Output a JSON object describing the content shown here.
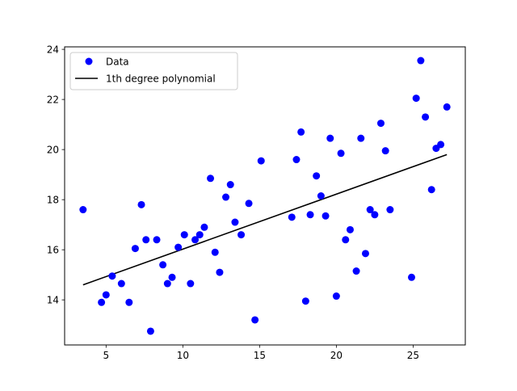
{
  "chart_data": {
    "type": "scatter",
    "title": "",
    "xlabel": "",
    "ylabel": "",
    "xlim": [
      2.3,
      28.4
    ],
    "ylim": [
      12.2,
      24.1
    ],
    "xticks": [
      5,
      10,
      15,
      20,
      25
    ],
    "yticks": [
      14,
      16,
      18,
      20,
      22,
      24
    ],
    "grid": false,
    "legend_position": "upper-left",
    "series": [
      {
        "name": "Data",
        "kind": "points",
        "color": "#0000ff",
        "x": [
          3.5,
          4.7,
          5.0,
          5.4,
          6.0,
          6.5,
          6.9,
          7.3,
          7.6,
          7.9,
          8.3,
          8.7,
          9.0,
          9.3,
          9.7,
          10.1,
          10.5,
          10.8,
          11.1,
          11.4,
          11.8,
          12.1,
          12.4,
          12.8,
          13.1,
          13.4,
          13.8,
          14.3,
          14.7,
          15.1,
          17.1,
          17.4,
          17.7,
          18.0,
          18.3,
          18.7,
          19.0,
          19.3,
          19.6,
          20.0,
          20.3,
          20.6,
          20.9,
          21.3,
          21.6,
          21.9,
          22.2,
          22.5,
          22.9,
          23.2,
          23.5,
          24.9,
          25.2,
          25.5,
          25.8,
          26.2,
          26.5,
          26.8,
          27.2
        ],
        "y": [
          17.6,
          13.9,
          14.2,
          14.95,
          14.65,
          13.9,
          16.05,
          17.8,
          16.4,
          12.75,
          16.4,
          15.4,
          14.65,
          14.9,
          16.1,
          16.6,
          14.65,
          16.4,
          16.6,
          16.9,
          18.85,
          15.9,
          15.1,
          18.1,
          18.6,
          17.1,
          16.6,
          17.85,
          13.2,
          19.55,
          17.3,
          19.6,
          20.7,
          13.95,
          17.4,
          18.95,
          18.15,
          17.35,
          20.45,
          14.15,
          19.85,
          16.4,
          16.8,
          15.15,
          20.45,
          15.85,
          17.6,
          17.4,
          21.05,
          19.95,
          17.6,
          14.9,
          22.05,
          23.55,
          21.3,
          18.4,
          20.05,
          20.2,
          21.7
        ]
      },
      {
        "name": "1th degree polynomial",
        "kind": "line",
        "color": "#000000",
        "x": [
          3.5,
          27.2
        ],
        "y": [
          14.6,
          19.8
        ]
      }
    ]
  }
}
